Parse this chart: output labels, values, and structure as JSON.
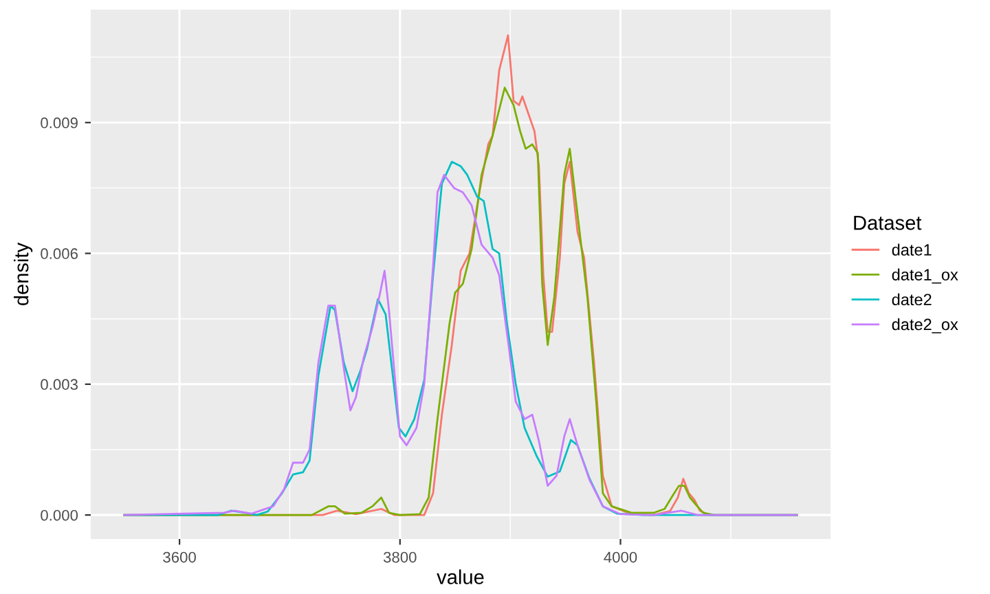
{
  "chart_data": {
    "type": "line",
    "xlabel": "value",
    "ylabel": "density",
    "legend_title": "Dataset",
    "legend": "right",
    "grid": true,
    "marker": "none",
    "line_style": "solid",
    "xlim": [
      3519.5,
      4190.5
    ],
    "xticks": [
      3600,
      3800,
      4000
    ],
    "ylim": [
      -0.00055,
      0.01159
    ],
    "yticks": [
      {
        "value": 0,
        "label": "0.000"
      },
      {
        "value": 0.003,
        "label": "0.003"
      },
      {
        "value": 0.006,
        "label": "0.006"
      },
      {
        "value": 0.009,
        "label": "0.009"
      }
    ],
    "series": [
      {
        "name": "date1",
        "color": "#f8766d",
        "x": [
          3550,
          3730,
          3743,
          3760,
          3783,
          3795,
          3822,
          3830,
          3838,
          3847,
          3855,
          3863,
          3872,
          3880,
          3884,
          3890,
          3898,
          3903,
          3908,
          3911,
          3922,
          3926,
          3930,
          3934,
          3938,
          3945,
          3949,
          3954,
          3961,
          3967,
          3976,
          3984,
          3992,
          4010,
          4030,
          4045,
          4052,
          4057,
          4062,
          4067,
          4072,
          4080,
          4160
        ],
        "values": [
          0,
          0,
          0.0001,
          2e-05,
          0.00014,
          0,
          0,
          0.0005,
          0.0023,
          0.0039,
          0.0056,
          0.006,
          0.0074,
          0.0085,
          0.0087,
          0.0102,
          0.011,
          0.0095,
          0.0094,
          0.0096,
          0.0088,
          0.008,
          0.0055,
          0.0042,
          0.0042,
          0.0059,
          0.0076,
          0.0081,
          0.0065,
          0.0059,
          0.0035,
          0.0009,
          0.0002,
          2e-05,
          0,
          9e-05,
          0.0004,
          0.00083,
          0.0005,
          0.00035,
          0.0001,
          0,
          0
        ]
      },
      {
        "name": "date1_ox",
        "color": "#7cae00",
        "x": [
          3550,
          3720,
          3735,
          3741,
          3750,
          3765,
          3775,
          3783,
          3790,
          3800,
          3818,
          3826,
          3834,
          3845,
          3850,
          3857,
          3865,
          3874,
          3884,
          3895,
          3903,
          3909,
          3914,
          3920,
          3925,
          3929,
          3934,
          3940,
          3949,
          3954,
          3961,
          3970,
          3978,
          3984,
          3992,
          4010,
          4030,
          4040,
          4047,
          4053,
          4058,
          4063,
          4068,
          4075,
          4085,
          4160
        ],
        "values": [
          0,
          0,
          0.0002,
          0.0002,
          3e-05,
          5e-05,
          0.0002,
          0.0004,
          5e-05,
          0,
          2e-05,
          0.0004,
          0.0022,
          0.0044,
          0.0051,
          0.0053,
          0.0061,
          0.0078,
          0.0087,
          0.0098,
          0.0094,
          0.0088,
          0.0084,
          0.0085,
          0.0083,
          0.0053,
          0.0039,
          0.005,
          0.0078,
          0.0084,
          0.0069,
          0.005,
          0.0026,
          0.0005,
          0.0002,
          5e-05,
          5e-05,
          0.00014,
          0.00043,
          0.00067,
          0.00067,
          0.0004,
          0.00025,
          5e-05,
          0,
          0
        ]
      },
      {
        "name": "date2",
        "color": "#00bfc4",
        "x": [
          3550,
          3635,
          3647,
          3660,
          3670,
          3680,
          3693,
          3703,
          3712,
          3718,
          3726,
          3737,
          3741,
          3749,
          3757,
          3764,
          3770,
          3780,
          3787,
          3799,
          3805,
          3813,
          3822,
          3830,
          3838,
          3847,
          3855,
          3861,
          3870,
          3876,
          3884,
          3890,
          3897,
          3905,
          3913,
          3924,
          3934,
          3945,
          3955,
          3961,
          3972,
          3984,
          3997,
          4020,
          4160
        ],
        "values": [
          0,
          0,
          0.0001,
          5e-05,
          0,
          8e-05,
          0.0005,
          0.00093,
          0.00098,
          0.00125,
          0.0032,
          0.0048,
          0.0047,
          0.0035,
          0.00284,
          0.0033,
          0.0038,
          0.00495,
          0.0046,
          0.002,
          0.0018,
          0.0022,
          0.0031,
          0.0055,
          0.0076,
          0.0081,
          0.008,
          0.0078,
          0.0073,
          0.0072,
          0.0061,
          0.006,
          0.0044,
          0.003,
          0.002,
          0.00135,
          0.00088,
          0.001,
          0.00172,
          0.0016,
          0.00083,
          0.0002,
          3e-05,
          0,
          0
        ]
      },
      {
        "name": "date2_ox",
        "color": "#c77cff",
        "x": [
          3550,
          3640,
          3650,
          3665,
          3685,
          3695,
          3703,
          3712,
          3718,
          3726,
          3735,
          3741,
          3750,
          3755,
          3760,
          3767,
          3775,
          3782,
          3786,
          3790,
          3800,
          3806,
          3815,
          3822,
          3830,
          3834,
          3840,
          3849,
          3857,
          3865,
          3874,
          3884,
          3890,
          3899,
          3905,
          3913,
          3920,
          3926,
          3934,
          3942,
          3949,
          3954,
          3961,
          3972,
          3984,
          4000,
          4030,
          4055,
          4070,
          4160
        ],
        "values": [
          0,
          5e-05,
          0.0001,
          3e-05,
          0.0002,
          0.0006,
          0.0012,
          0.0012,
          0.0015,
          0.0035,
          0.0048,
          0.0048,
          0.0032,
          0.0024,
          0.0027,
          0.0036,
          0.0043,
          0.0051,
          0.0056,
          0.0047,
          0.0018,
          0.0016,
          0.002,
          0.003,
          0.0057,
          0.0074,
          0.0078,
          0.0075,
          0.0074,
          0.0071,
          0.0062,
          0.0059,
          0.0055,
          0.0038,
          0.0026,
          0.0022,
          0.0023,
          0.0017,
          0.00067,
          0.0009,
          0.0018,
          0.0022,
          0.0016,
          0.0008,
          0.0002,
          2e-05,
          0,
          0.0001,
          0,
          0
        ]
      }
    ]
  }
}
